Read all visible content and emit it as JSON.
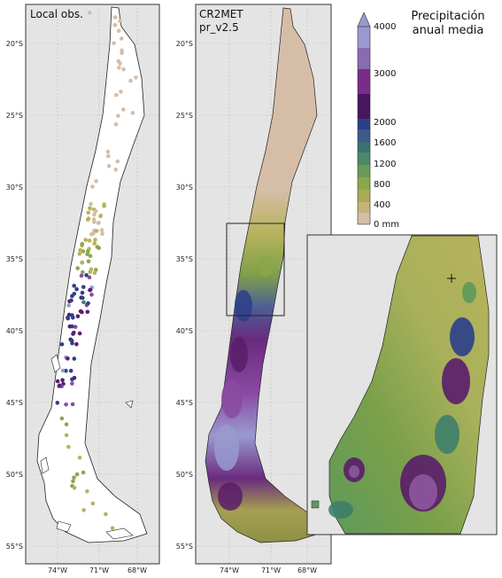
{
  "panels": [
    {
      "title_line1": "Local obs.",
      "title_line2": ""
    },
    {
      "title_line1": "CR2MET",
      "title_line2": "pr_v2.5"
    }
  ],
  "lat_ticks": [
    "20°S",
    "25°S",
    "30°S",
    "35°S",
    "40°S",
    "45°S",
    "50°S",
    "55°S"
  ],
  "lon_ticks": [
    "74°W",
    "71°W",
    "68°W"
  ],
  "colorbar": {
    "title_line1": "Precipitación",
    "title_line2": "anual media",
    "ticks": [
      "4000",
      "3000",
      "2000",
      "1600",
      "1200",
      "800",
      "400",
      "0  mm"
    ]
  },
  "colors": {
    "land": "#e4e4e4",
    "dry": "#d6bda8",
    "olive": "#b8b35c",
    "green": "#8aa84a",
    "teal": "#3f7f6a",
    "blue": "#2c3f8a",
    "purple": "#5a1d6b",
    "violet": "#8a4aa2",
    "lavender": "#9a9ad0"
  }
}
